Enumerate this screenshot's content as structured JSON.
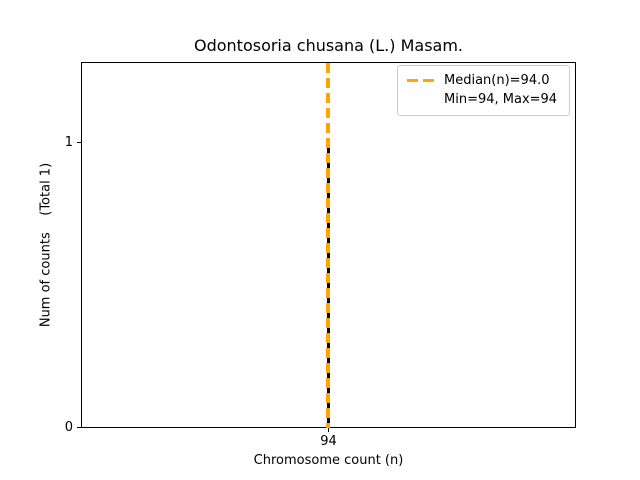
{
  "figure": {
    "title": "Odontosoria chusana (L.) Masam.",
    "xlabel": "Chromosome count (n)",
    "ylabel": "Num of counts    (Total 1)",
    "x_tick_labels": [
      "94"
    ],
    "y_tick_labels": [
      "1",
      "0"
    ],
    "legend": {
      "median_label": "Median(n)=94.0",
      "minmax_label": "Min=94, Max=94"
    },
    "colors": {
      "median_line": "#FFA500",
      "bar": "#000000",
      "axes_border": "#000000",
      "legend_border": "#cccccc",
      "background": "#ffffff"
    }
  },
  "chart_data": {
    "type": "bar",
    "categories": [
      94
    ],
    "values": [
      1
    ],
    "series": [
      {
        "name": "counts-histogram",
        "values": [
          1
        ]
      }
    ],
    "title": "Odontosoria chusana (L.) Masam.",
    "xlabel": "Chromosome count (n)",
    "ylabel": "Num of counts    (Total 1)",
    "ylim": [
      0,
      1.28
    ],
    "y_ticks": [
      0,
      1
    ],
    "x_ticks": [
      94
    ],
    "grid": false,
    "legend_position": "upper right",
    "legend_entries": [
      "Median(n)=94.0",
      "Min=94, Max=94"
    ],
    "annotations": {
      "median_n": 94.0,
      "min_n": 94,
      "max_n": 94,
      "total_counts": 1
    },
    "marks": [
      {
        "kind": "vline",
        "x": 94,
        "style": "dashed",
        "color": "#FFA500",
        "label": "Median(n)=94.0"
      }
    ]
  }
}
